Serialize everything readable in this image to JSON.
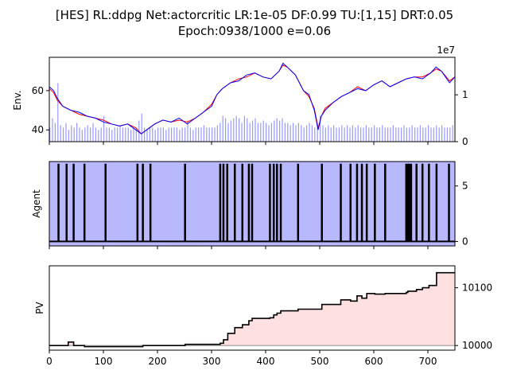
{
  "chart_data": [
    {
      "type": "line",
      "title": "[HES] RL:ddpg Net:actorcritic LR:1e-05 DF:0.99 TU:[1,15] DRT:0.05",
      "subtitle": "Epoch:0938/1000 e=0.06",
      "ylabel": "Env.",
      "ylabel_right": "",
      "right_axis_offset_label": "1e7",
      "xlim": [
        0,
        750
      ],
      "ylim": [
        34,
        77
      ],
      "ylim_right": [
        0,
        1.8
      ],
      "yticks": [
        40,
        60
      ],
      "yticks_right": [
        0,
        1
      ],
      "series": [
        {
          "color": "#0000ff",
          "x": [
            0,
            8,
            15,
            25,
            40,
            55,
            70,
            85,
            100,
            115,
            130,
            145,
            160,
            170,
            180,
            195,
            210,
            225,
            240,
            255,
            270,
            285,
            300,
            310,
            320,
            335,
            350,
            365,
            380,
            395,
            410,
            425,
            432,
            440,
            455,
            470,
            480,
            490,
            497,
            503,
            510,
            525,
            540,
            555,
            570,
            585,
            600,
            615,
            630,
            645,
            660,
            675,
            690,
            705,
            715,
            725,
            740,
            750
          ],
          "values": [
            62,
            60,
            56,
            52,
            50,
            49,
            47,
            46,
            44,
            43,
            42,
            43,
            40,
            38,
            40,
            43,
            45,
            44,
            46,
            43,
            46,
            49,
            52,
            58,
            61,
            64,
            65,
            68,
            69,
            67,
            66,
            70,
            74,
            72,
            68,
            60,
            58,
            50,
            40,
            47,
            50,
            54,
            57,
            59,
            61,
            60,
            63,
            65,
            62,
            64,
            66,
            67,
            66,
            69,
            72,
            70,
            64,
            67
          ]
        },
        {
          "color": "#ff0000",
          "x": [
            0,
            8,
            15,
            25,
            40,
            55,
            70,
            85,
            100,
            115,
            130,
            145,
            160,
            170,
            180,
            195,
            210,
            225,
            240,
            255,
            270,
            285,
            300,
            310,
            320,
            335,
            350,
            365,
            380,
            395,
            410,
            425,
            432,
            440,
            455,
            470,
            480,
            490,
            497,
            503,
            510,
            525,
            540,
            555,
            570,
            585,
            600,
            615,
            630,
            645,
            660,
            675,
            690,
            705,
            715,
            725,
            740,
            750
          ],
          "values": [
            61,
            59,
            55,
            52,
            50,
            48,
            47,
            46,
            45,
            43,
            42,
            43,
            41,
            38,
            40,
            43,
            45,
            44,
            45,
            44,
            46,
            49,
            53,
            58,
            61,
            64,
            66,
            67,
            69,
            67,
            66,
            70,
            73,
            72,
            68,
            60,
            57,
            51,
            41,
            47,
            51,
            54,
            57,
            59,
            62,
            60,
            63,
            65,
            62,
            64,
            66,
            67,
            67,
            69,
            71,
            70,
            65,
            67
          ]
        }
      ],
      "volume_bars": {
        "color": "#8080ff",
        "note": "",
        "x": [
          0,
          5,
          10,
          15,
          20,
          25,
          30,
          35,
          40,
          45,
          50,
          55,
          60,
          65,
          70,
          75,
          80,
          85,
          90,
          95,
          100,
          105,
          110,
          115,
          120,
          125,
          130,
          135,
          140,
          145,
          150,
          155,
          160,
          165,
          170,
          175,
          180,
          185,
          190,
          195,
          200,
          205,
          210,
          215,
          220,
          225,
          230,
          235,
          240,
          245,
          250,
          255,
          260,
          265,
          270,
          275,
          280,
          285,
          290,
          295,
          300,
          305,
          310,
          315,
          320,
          325,
          330,
          335,
          340,
          345,
          350,
          355,
          360,
          365,
          370,
          375,
          380,
          385,
          390,
          395,
          400,
          405,
          410,
          415,
          420,
          425,
          430,
          435,
          440,
          445,
          450,
          455,
          460,
          465,
          470,
          475,
          480,
          485,
          490,
          495,
          500,
          505,
          510,
          515,
          520,
          525,
          530,
          535,
          540,
          545,
          550,
          555,
          560,
          565,
          570,
          575,
          580,
          585,
          590,
          595,
          600,
          605,
          610,
          615,
          620,
          625,
          630,
          635,
          640,
          645,
          650,
          655,
          660,
          665,
          670,
          675,
          680,
          685,
          690,
          695,
          700,
          705,
          710,
          715,
          720,
          725,
          730,
          735,
          740,
          745
        ],
        "values": [
          0.3,
          0.5,
          0.4,
          1.25,
          0.35,
          0.3,
          0.4,
          0.25,
          0.35,
          0.3,
          0.4,
          0.3,
          0.25,
          0.3,
          0.35,
          0.3,
          0.4,
          0.3,
          0.25,
          0.3,
          0.55,
          0.3,
          0.3,
          0.25,
          0.3,
          0.3,
          0.35,
          0.3,
          0.3,
          0.3,
          0.25,
          0.3,
          0.3,
          0.45,
          0.6,
          0.3,
          0.25,
          0.3,
          0.3,
          0.25,
          0.3,
          0.3,
          0.3,
          0.25,
          0.3,
          0.3,
          0.3,
          0.3,
          0.25,
          0.3,
          0.3,
          0.45,
          0.3,
          0.25,
          0.3,
          0.3,
          0.3,
          0.35,
          0.3,
          0.3,
          0.3,
          0.3,
          0.35,
          0.4,
          0.55,
          0.5,
          0.4,
          0.45,
          0.5,
          0.55,
          0.5,
          0.4,
          0.55,
          0.5,
          0.4,
          0.45,
          0.5,
          0.4,
          0.4,
          0.45,
          0.4,
          0.35,
          0.4,
          0.45,
          0.5,
          0.45,
          0.5,
          0.4,
          0.4,
          0.35,
          0.4,
          0.35,
          0.4,
          0.35,
          0.3,
          0.35,
          0.4,
          0.35,
          0.3,
          0.35,
          0.55,
          0.35,
          0.3,
          0.35,
          0.3,
          0.35,
          0.3,
          0.3,
          0.35,
          0.3,
          0.35,
          0.3,
          0.35,
          0.3,
          0.35,
          0.3,
          0.3,
          0.35,
          0.3,
          0.3,
          0.35,
          0.3,
          0.3,
          0.35,
          0.3,
          0.3,
          0.3,
          0.35,
          0.3,
          0.3,
          0.3,
          0.35,
          0.3,
          0.3,
          0.35,
          0.3,
          0.3,
          0.35,
          0.3,
          0.3,
          0.35,
          0.3,
          0.3,
          0.35,
          0.3,
          0.35,
          0.3,
          0.3,
          0.3,
          0.35
        ]
      }
    },
    {
      "type": "line",
      "ylabel": "Agent",
      "ylim": [
        -0.4,
        7.2
      ],
      "yticks": [
        0,
        5
      ],
      "background_color": "#b8b8ff",
      "line_color": "#000000",
      "baseline": 0,
      "spike_height": 7,
      "spike_x": [
        17,
        32,
        45,
        65,
        104,
        163,
        173,
        187,
        251,
        316,
        322,
        329,
        343,
        357,
        369,
        375,
        408,
        415,
        421,
        428,
        460,
        504,
        539,
        557,
        569,
        578,
        587,
        602,
        621,
        660,
        663,
        666,
        669,
        679,
        690,
        702,
        716,
        739
      ]
    },
    {
      "type": "area",
      "ylabel": "PV",
      "ylim": [
        9992,
        10138
      ],
      "yticks_right": [
        10000,
        10100
      ],
      "baseline": 10000,
      "line_color": "#000000",
      "fill_color": "#ffe0e0",
      "x": [
        0,
        32,
        35,
        45,
        65,
        104,
        173,
        251,
        316,
        322,
        330,
        343,
        357,
        369,
        375,
        408,
        415,
        421,
        428,
        460,
        504,
        539,
        557,
        569,
        578,
        587,
        602,
        621,
        660,
        663,
        669,
        679,
        690,
        702,
        716,
        739,
        750
      ],
      "values": [
        10000,
        10000,
        10006,
        10000,
        9998,
        9998,
        10000,
        10002,
        10004,
        10010,
        10021,
        10031,
        10036,
        10043,
        10047,
        10048,
        10053,
        10056,
        10060,
        10063,
        10071,
        10079,
        10077,
        10086,
        10082,
        10090,
        10089,
        10090,
        10092,
        10094,
        10094,
        10097,
        10100,
        10104,
        10126,
        10126,
        10126
      ]
    }
  ],
  "xticks": [
    0,
    100,
    200,
    300,
    400,
    500,
    600,
    700
  ]
}
